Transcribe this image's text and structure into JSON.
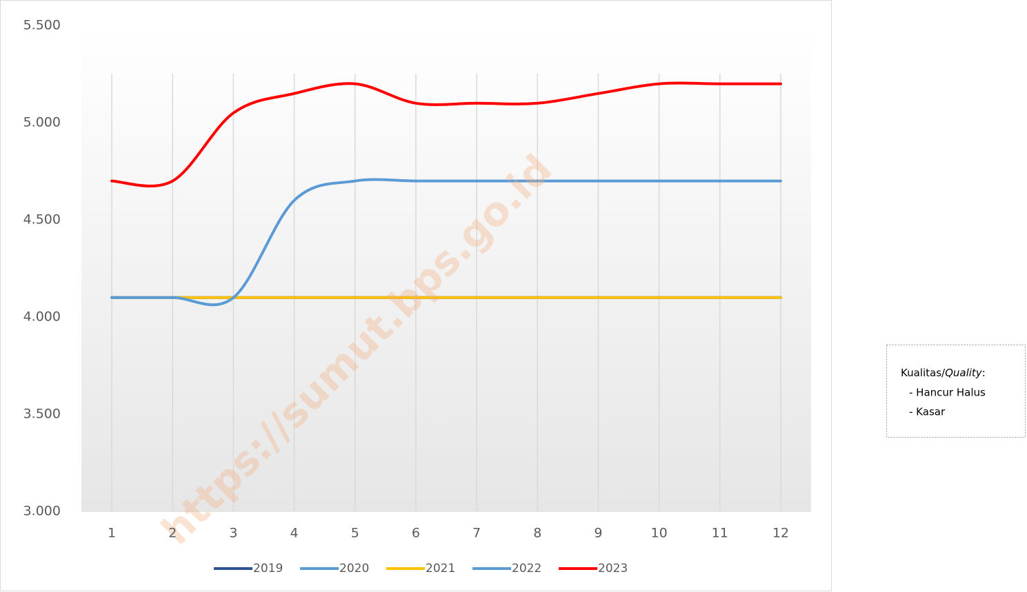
{
  "chart_data": {
    "type": "line",
    "categories": [
      "1",
      "2",
      "3",
      "4",
      "5",
      "6",
      "7",
      "8",
      "9",
      "10",
      "11",
      "12"
    ],
    "series": [
      {
        "name": "2019",
        "color": "#2f5597",
        "values": [
          4100,
          4100,
          4100,
          4100,
          4100,
          4100,
          4100,
          4100,
          4100,
          4100,
          4100,
          4100
        ]
      },
      {
        "name": "2020",
        "color": "#5b9bd5",
        "values": [
          4100,
          4100,
          4100,
          4100,
          4100,
          4100,
          4100,
          4100,
          4100,
          4100,
          4100,
          4100
        ]
      },
      {
        "name": "2021",
        "color": "#ffc000",
        "values": [
          4100,
          4100,
          4100,
          4100,
          4100,
          4100,
          4100,
          4100,
          4100,
          4100,
          4100,
          4100
        ]
      },
      {
        "name": "2022",
        "color": "#5b9bd5",
        "values": [
          4100,
          4100,
          4100,
          4600,
          4700,
          4700,
          4700,
          4700,
          4700,
          4700,
          4700,
          4700
        ]
      },
      {
        "name": "2023",
        "color": "#ff0000",
        "values": [
          4700,
          4700,
          5050,
          5150,
          5200,
          5100,
          5100,
          5100,
          5150,
          5200,
          5200,
          5200
        ]
      }
    ],
    "ylim": [
      3000,
      5500
    ],
    "yticks": [
      {
        "value": 3000,
        "label": "3.000"
      },
      {
        "value": 3500,
        "label": "3.500"
      },
      {
        "value": 4000,
        "label": "4.000"
      },
      {
        "value": 4500,
        "label": "4.500"
      },
      {
        "value": 5000,
        "label": "5.000"
      },
      {
        "value": 5500,
        "label": "5.500"
      }
    ],
    "smooth": true,
    "grid": true,
    "legend": "bottom",
    "watermark": "https://sumut.bps.go.id"
  },
  "note": {
    "title": [
      "Kualitas/",
      "Quality",
      ":"
    ],
    "lines": [
      "- Hancur Halus",
      "- Kasar"
    ]
  }
}
